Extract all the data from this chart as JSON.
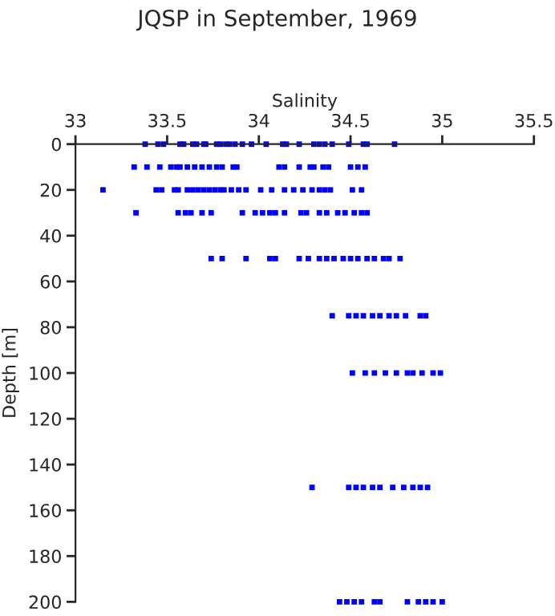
{
  "chart_data": {
    "type": "scatter",
    "title": "JQSP in September, 1969",
    "xlabel": "Salinity",
    "ylabel": "Depth [m]",
    "xlim": [
      33,
      35.5
    ],
    "xticks": [
      33,
      33.5,
      34,
      34.5,
      35,
      35.5
    ],
    "ylim": [
      200,
      0
    ],
    "yticks": [
      0,
      20,
      40,
      60,
      80,
      100,
      120,
      140,
      160,
      180,
      200
    ],
    "grid": false,
    "marker": "square",
    "series": [
      {
        "color": "#0000ff",
        "x": [
          33.38,
          33.45,
          33.48,
          33.57,
          33.59,
          33.64,
          33.66,
          33.7,
          33.71,
          33.77,
          33.79,
          33.82,
          33.84,
          33.87,
          33.91,
          33.96,
          34.04,
          34.13,
          34.15,
          34.22,
          34.3,
          34.33,
          34.36,
          34.4,
          34.49,
          34.57,
          34.59,
          34.74,
          33.32,
          33.39,
          33.46,
          33.52,
          33.55,
          33.57,
          33.61,
          33.65,
          33.69,
          33.73,
          33.77,
          33.8,
          33.86,
          33.88,
          34.11,
          34.14,
          34.22,
          34.28,
          34.3,
          34.35,
          34.38,
          34.5,
          34.54,
          34.58,
          33.15,
          33.44,
          33.47,
          33.54,
          33.56,
          33.61,
          33.64,
          33.67,
          33.7,
          33.73,
          33.76,
          33.79,
          33.81,
          33.85,
          33.89,
          33.93,
          34.01,
          34.07,
          34.14,
          34.19,
          34.24,
          34.29,
          34.33,
          34.36,
          34.39,
          34.51,
          34.56,
          33.33,
          33.56,
          33.6,
          33.63,
          33.69,
          33.74,
          33.91,
          33.98,
          34.02,
          34.06,
          34.09,
          34.14,
          34.23,
          34.26,
          34.33,
          34.37,
          34.43,
          34.47,
          34.52,
          34.56,
          34.59,
          33.74,
          33.8,
          33.93,
          34.06,
          34.09,
          34.22,
          34.27,
          34.33,
          34.37,
          34.41,
          34.46,
          34.5,
          34.54,
          34.59,
          34.63,
          34.68,
          34.71,
          34.77,
          34.4,
          34.49,
          34.53,
          34.57,
          34.62,
          34.66,
          34.71,
          34.75,
          34.8,
          34.88,
          34.91,
          34.51,
          34.58,
          34.63,
          34.69,
          34.75,
          34.81,
          34.84,
          34.89,
          34.95,
          34.99,
          34.29,
          34.49,
          34.53,
          34.57,
          34.62,
          34.66,
          34.73,
          34.79,
          34.84,
          34.88,
          34.92,
          34.44,
          34.48,
          34.52,
          34.56,
          34.63,
          34.66,
          34.81,
          34.87,
          34.91,
          34.95,
          35.0
        ],
        "values": [
          0,
          0,
          0,
          0,
          0,
          0,
          0,
          0,
          0,
          0,
          0,
          0,
          0,
          0,
          0,
          0,
          0,
          0,
          0,
          0,
          0,
          0,
          0,
          0,
          0,
          0,
          0,
          0,
          10,
          10,
          10,
          10,
          10,
          10,
          10,
          10,
          10,
          10,
          10,
          10,
          10,
          10,
          10,
          10,
          10,
          10,
          10,
          10,
          10,
          10,
          10,
          10,
          20,
          20,
          20,
          20,
          20,
          20,
          20,
          20,
          20,
          20,
          20,
          20,
          20,
          20,
          20,
          20,
          20,
          20,
          20,
          20,
          20,
          20,
          20,
          20,
          20,
          20,
          20,
          30,
          30,
          30,
          30,
          30,
          30,
          30,
          30,
          30,
          30,
          30,
          30,
          30,
          30,
          30,
          30,
          30,
          30,
          30,
          30,
          30,
          50,
          50,
          50,
          50,
          50,
          50,
          50,
          50,
          50,
          50,
          50,
          50,
          50,
          50,
          50,
          50,
          50,
          50,
          75,
          75,
          75,
          75,
          75,
          75,
          75,
          75,
          75,
          75,
          75,
          100,
          100,
          100,
          100,
          100,
          100,
          100,
          100,
          100,
          100,
          150,
          150,
          150,
          150,
          150,
          150,
          150,
          150,
          150,
          150,
          150,
          200,
          200,
          200,
          200,
          200,
          200,
          200,
          200,
          200,
          200,
          200
        ]
      }
    ]
  }
}
